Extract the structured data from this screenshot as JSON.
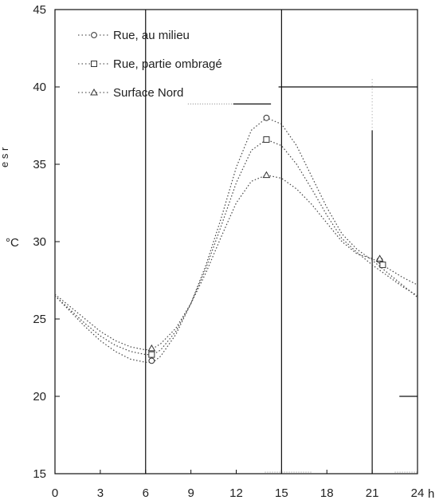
{
  "chart_data": {
    "type": "line",
    "x_unit_label": "h",
    "y_unit_label": "°C",
    "xlim": [
      0,
      24
    ],
    "ylim": [
      15,
      45
    ],
    "x_ticks": [
      0,
      3,
      6,
      9,
      12,
      15,
      18,
      21,
      24
    ],
    "x_tick_labels": [
      "0",
      "3",
      "6",
      "9",
      "12",
      "15",
      "18",
      "21",
      "24"
    ],
    "y_ticks": [
      15,
      20,
      25,
      30,
      35,
      40,
      45
    ],
    "y_tick_labels": [
      "15",
      "20",
      "25",
      "30",
      "35",
      "40",
      "45"
    ],
    "vertical_reference_lines_x": [
      6,
      15,
      21
    ],
    "grid": false,
    "legend_position": "top-left",
    "left_edge_text": "e  s  r",
    "series": [
      {
        "name": "Rue, au milieu",
        "marker": "circle",
        "marker_points": [
          [
            6.4,
            22.3
          ],
          [
            14.0,
            38.0
          ],
          [
            21.5,
            28.8
          ]
        ],
        "x": [
          0,
          1,
          2,
          3,
          4,
          5,
          6,
          6.5,
          7,
          8,
          9,
          10,
          11,
          12,
          13,
          14,
          15,
          16,
          17,
          18,
          19,
          20,
          21,
          22,
          23,
          24
        ],
        "values": [
          26.5,
          25.5,
          24.5,
          23.6,
          22.9,
          22.4,
          22.2,
          22.2,
          22.6,
          24.0,
          26.0,
          28.5,
          31.5,
          34.8,
          37.2,
          38.0,
          37.6,
          36.2,
          34.2,
          32.2,
          30.5,
          29.5,
          28.8,
          28.0,
          27.2,
          26.4
        ]
      },
      {
        "name": "Rue, partie ombragé",
        "marker": "square",
        "marker_points": [
          [
            6.4,
            22.7
          ],
          [
            14.0,
            36.6
          ],
          [
            21.7,
            28.5
          ]
        ],
        "x": [
          0,
          1,
          2,
          3,
          4,
          5,
          6,
          6.5,
          7,
          8,
          9,
          10,
          11,
          12,
          13,
          14,
          15,
          16,
          17,
          18,
          19,
          20,
          21,
          22,
          23,
          24
        ],
        "values": [
          26.5,
          25.6,
          24.7,
          23.9,
          23.3,
          22.9,
          22.7,
          22.7,
          23.0,
          24.2,
          26.0,
          28.3,
          31.0,
          33.8,
          35.9,
          36.6,
          36.2,
          35.0,
          33.4,
          31.7,
          30.2,
          29.3,
          28.5,
          27.8,
          27.1,
          26.5
        ]
      },
      {
        "name": "Surface Nord",
        "marker": "triangle",
        "marker_points": [
          [
            6.4,
            23.1
          ],
          [
            14.0,
            34.3
          ],
          [
            21.5,
            28.9
          ]
        ],
        "x": [
          0,
          1,
          2,
          3,
          4,
          5,
          6,
          6.5,
          7,
          8,
          9,
          10,
          11,
          12,
          13,
          14,
          15,
          16,
          17,
          18,
          19,
          20,
          21,
          22,
          23,
          24
        ],
        "values": [
          26.6,
          25.8,
          25.0,
          24.2,
          23.6,
          23.2,
          23.0,
          23.1,
          23.4,
          24.4,
          26.0,
          28.0,
          30.3,
          32.5,
          33.9,
          34.3,
          34.1,
          33.4,
          32.4,
          31.2,
          30.0,
          29.2,
          28.9,
          28.3,
          27.7,
          27.2
        ]
      }
    ]
  },
  "legend": {
    "items": [
      {
        "label": "Rue, au milieu",
        "marker": "circle"
      },
      {
        "label": "Rue, partie ombragé",
        "marker": "square"
      },
      {
        "label": "Surface Nord",
        "marker": "triangle"
      }
    ]
  }
}
